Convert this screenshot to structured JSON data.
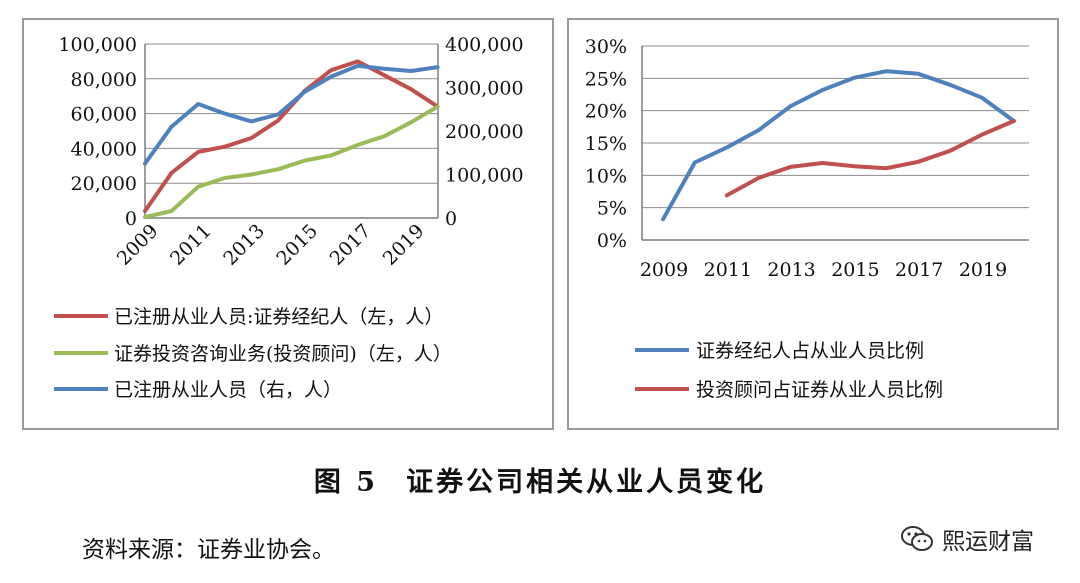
{
  "chart_data": [
    {
      "type": "line",
      "x": [
        2009,
        2010,
        2011,
        2012,
        2013,
        2014,
        2015,
        2016,
        2017,
        2018,
        2019,
        2020
      ],
      "x_tick_labels": [
        "2009",
        "2011",
        "2013",
        "2015",
        "2017",
        "2019"
      ],
      "y_left_range": [
        0,
        100000
      ],
      "y_left_ticks": [
        "0",
        "20,000",
        "40,000",
        "60,000",
        "80,000",
        "100,000"
      ],
      "y_right_range": [
        0,
        400000
      ],
      "y_right_ticks": [
        "0",
        "100,000",
        "200,000",
        "300,000",
        "400,000"
      ],
      "grid": "horizontal",
      "legend_position": "bottom",
      "series": [
        {
          "name": "已注册从业人员:证券经纪人（左，人）",
          "axis": "left",
          "color": "#c0504d",
          "values": [
            4000,
            26000,
            38000,
            41000,
            46000,
            56000,
            73000,
            85000,
            90000,
            82000,
            74000,
            64000
          ]
        },
        {
          "name": "证券投资咨询业务(投资顾问)（左，人）",
          "axis": "left",
          "color": "#9bbb59",
          "values": [
            500,
            4000,
            18000,
            23000,
            25000,
            28000,
            33000,
            36000,
            42000,
            47000,
            55000,
            64000
          ]
        },
        {
          "name": "已注册从业人员（右，人）",
          "axis": "right",
          "color": "#4f81bd",
          "values": [
            125000,
            210000,
            262000,
            240000,
            222000,
            238000,
            290000,
            325000,
            350000,
            343000,
            338000,
            347000
          ]
        }
      ]
    },
    {
      "type": "line",
      "x": [
        2009,
        2010,
        2011,
        2012,
        2013,
        2014,
        2015,
        2016,
        2017,
        2018,
        2019,
        2020
      ],
      "x_tick_labels": [
        "2009",
        "2011",
        "2013",
        "2015",
        "2017",
        "2019"
      ],
      "y_range": [
        0,
        0.3
      ],
      "y_ticks": [
        "0%",
        "5%",
        "10%",
        "15%",
        "20%",
        "25%",
        "30%"
      ],
      "grid": "horizontal",
      "legend_position": "bottom",
      "series": [
        {
          "name": "证券经纪人占从业人员比例",
          "color": "#4f81bd",
          "values": [
            0.032,
            0.12,
            0.143,
            0.17,
            0.207,
            0.232,
            0.251,
            0.261,
            0.257,
            0.24,
            0.22,
            0.184
          ]
        },
        {
          "name": "投资顾问占证券从业人员比例",
          "color": "#c0504d",
          "values": [
            null,
            null,
            0.069,
            0.096,
            0.113,
            0.119,
            0.114,
            0.111,
            0.121,
            0.138,
            0.163,
            0.184
          ]
        }
      ]
    }
  ],
  "figure": {
    "number": "图 5",
    "title": "证券公司相关从业人员变化"
  },
  "source": "资料来源：证券业协会。",
  "watermark": {
    "text": "熙运财富",
    "icon": "wechat-icon"
  }
}
